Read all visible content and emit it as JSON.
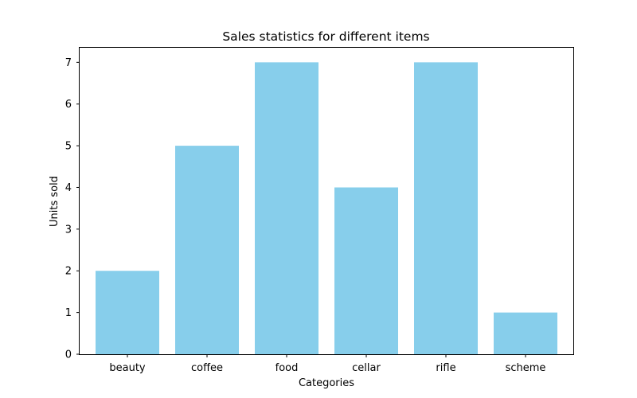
{
  "chart_data": {
    "type": "bar",
    "title": "Sales statistics for different items",
    "xlabel": "Categories",
    "ylabel": "Units sold",
    "categories": [
      "beauty",
      "coffee",
      "food",
      "cellar",
      "rifle",
      "scheme"
    ],
    "values": [
      2,
      5,
      7,
      4,
      7,
      1
    ],
    "ylim": [
      0,
      7.35
    ],
    "yticks": [
      0,
      1,
      2,
      3,
      4,
      5,
      6,
      7
    ],
    "grid": false,
    "bar_color": "#87ceeb"
  }
}
